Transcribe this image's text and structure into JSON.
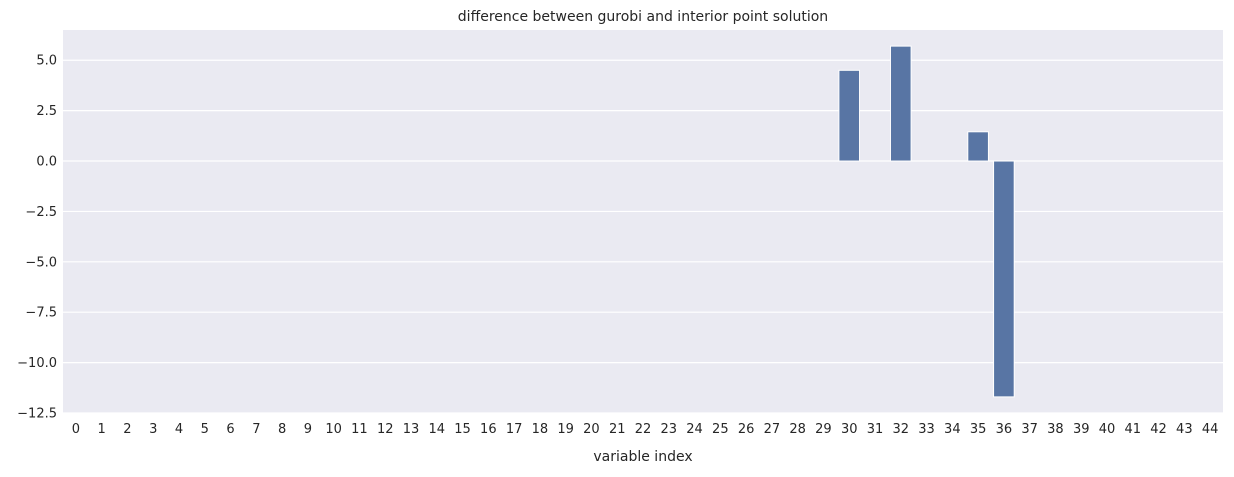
{
  "chart_data": {
    "type": "bar",
    "title": "difference between gurobi and interior point solution",
    "xlabel": "variable index",
    "ylabel": "",
    "categories": [
      "0",
      "1",
      "2",
      "3",
      "4",
      "5",
      "6",
      "7",
      "8",
      "9",
      "10",
      "11",
      "12",
      "13",
      "14",
      "15",
      "16",
      "17",
      "18",
      "19",
      "20",
      "21",
      "22",
      "23",
      "24",
      "25",
      "26",
      "27",
      "28",
      "29",
      "30",
      "31",
      "32",
      "33",
      "34",
      "35",
      "36",
      "37",
      "38",
      "39",
      "40",
      "41",
      "42",
      "43",
      "44"
    ],
    "values": [
      0,
      0,
      0,
      0,
      0,
      0,
      0,
      0,
      0,
      0,
      0,
      0,
      0,
      0,
      0,
      0,
      0,
      0,
      0,
      0,
      0,
      0,
      0,
      0,
      0,
      0,
      0,
      0,
      0,
      0,
      4.5,
      0,
      5.7,
      0,
      0,
      1.45,
      -11.7,
      0,
      0,
      0,
      0,
      0,
      0,
      0,
      0
    ],
    "ylim": [
      -12.5,
      6.5
    ],
    "yticks": [
      5.0,
      2.5,
      0.0,
      -2.5,
      -5.0,
      -7.5,
      -10.0,
      -12.5
    ],
    "ytick_labels": [
      "5.0",
      "2.5",
      "0.0",
      "−2.5",
      "−5.0",
      "−7.5",
      "−10.0",
      "−12.5"
    ],
    "grid": true,
    "colors": {
      "bar": "#5875a4",
      "background": "#eaeaf2",
      "grid": "#ffffff"
    }
  }
}
